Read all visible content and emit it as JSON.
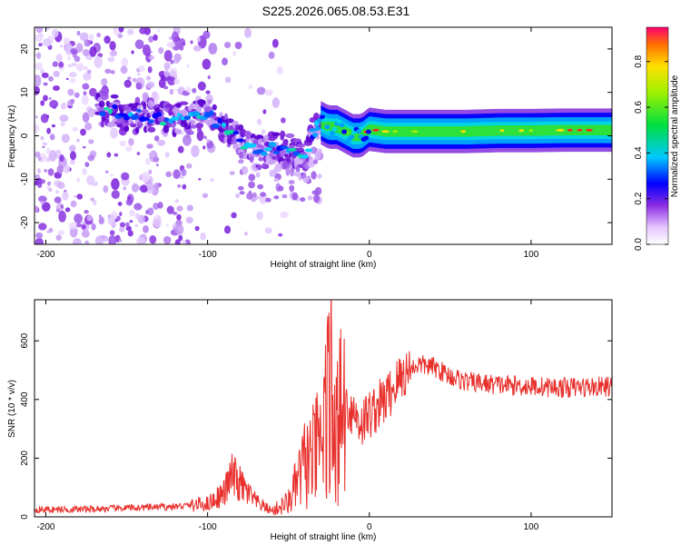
{
  "title": "S225.2026.065.08.53.E31",
  "chart_data": [
    {
      "type": "heatmap",
      "title": "S225.2026.065.08.53.E31",
      "xlabel": "Height of straight line (km)",
      "ylabel": "Frequency (Hz)",
      "xlim": [
        -207,
        150
      ],
      "ylim": [
        -25,
        25
      ],
      "xticks": [
        -200,
        -100,
        0,
        100
      ],
      "yticks": [
        -20,
        -10,
        0,
        10,
        20
      ],
      "colorbar": {
        "label": "Normalized spectral amplitude",
        "range": [
          0.0,
          0.95
        ],
        "ticks": [
          0.0,
          0.2,
          0.4,
          0.6,
          0.8
        ]
      },
      "ridge": {
        "x": [
          -165,
          -150,
          -130,
          -110,
          -100,
          -90,
          -80,
          -70,
          -60,
          -50,
          -40,
          -35,
          -30,
          -25,
          -20,
          -15,
          -10,
          -5,
          0,
          10,
          20,
          40,
          60,
          80,
          100,
          120,
          150
        ],
        "y": [
          6,
          5,
          4,
          4,
          5,
          2,
          -1,
          -4,
          -3,
          -3,
          -6,
          1,
          3,
          2,
          2,
          1,
          0,
          0,
          1.5,
          1,
          1,
          1,
          1,
          1.2,
          1.2,
          1.3,
          1.3
        ]
      }
    },
    {
      "type": "line",
      "xlabel": "Height of straight line (km)",
      "ylabel": "SNR (10 * v/v)",
      "xlim": [
        -207,
        150
      ],
      "ylim": [
        0,
        740
      ],
      "xticks": [
        -200,
        -100,
        0,
        100
      ],
      "yticks": [
        0,
        200,
        400,
        600
      ],
      "color": "#e8302c",
      "series": [
        {
          "name": "SNR",
          "x": [
            -207,
            -180,
            -150,
            -120,
            -100,
            -90,
            -85,
            -80,
            -70,
            -60,
            -50,
            -45,
            -40,
            -35,
            -30,
            -27,
            -25,
            -22,
            -20,
            -15,
            -10,
            -5,
            0,
            10,
            20,
            30,
            40,
            50,
            60,
            80,
            100,
            120,
            150
          ],
          "y": [
            25,
            25,
            30,
            35,
            45,
            80,
            140,
            110,
            50,
            20,
            50,
            110,
            180,
            200,
            250,
            330,
            400,
            420,
            310,
            380,
            360,
            320,
            350,
            400,
            480,
            520,
            510,
            480,
            460,
            450,
            445,
            440,
            445
          ]
        }
      ]
    }
  ]
}
